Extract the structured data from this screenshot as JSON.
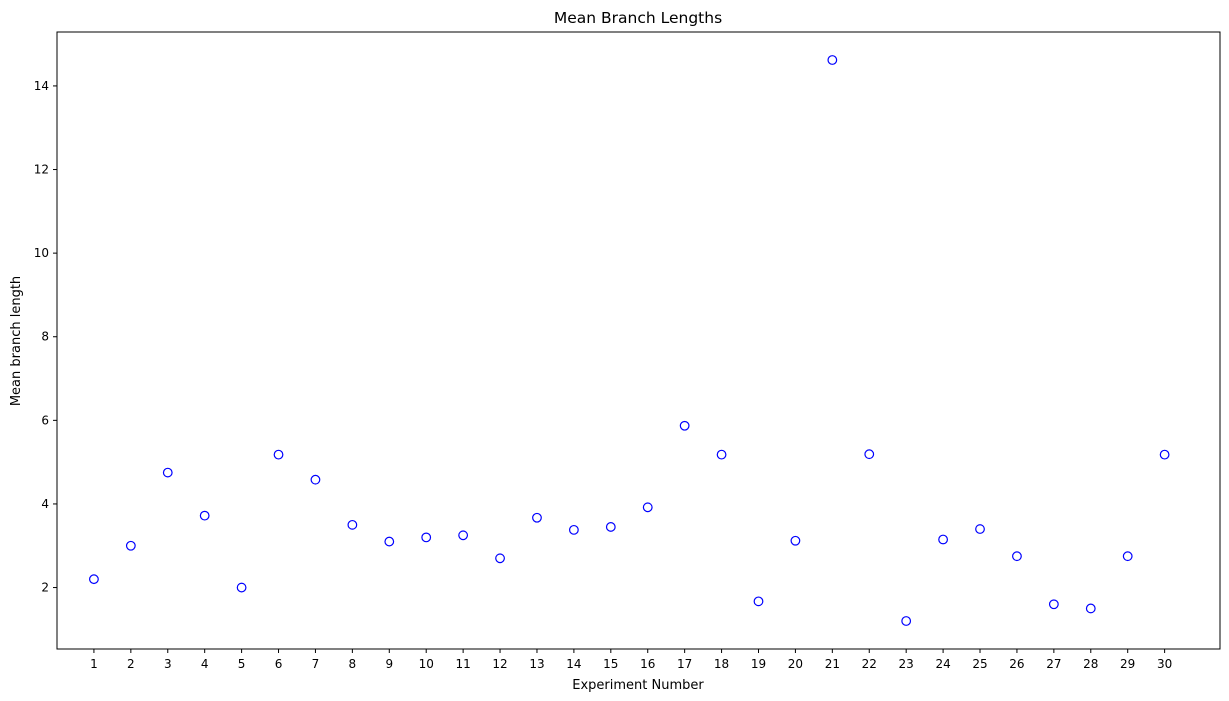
{
  "chart_data": {
    "type": "scatter",
    "title": "Mean Branch Lengths",
    "xlabel": "Experiment Number",
    "ylabel": "Mean branch length",
    "x": [
      1,
      2,
      3,
      4,
      5,
      6,
      7,
      8,
      9,
      10,
      11,
      12,
      13,
      14,
      15,
      16,
      17,
      18,
      19,
      20,
      21,
      22,
      23,
      24,
      25,
      26,
      27,
      28,
      29,
      30
    ],
    "y": [
      2.2,
      3.0,
      4.75,
      3.72,
      2.0,
      5.18,
      4.58,
      3.5,
      3.1,
      3.2,
      3.25,
      2.7,
      3.67,
      3.38,
      3.45,
      3.92,
      5.87,
      5.18,
      1.67,
      3.12,
      14.62,
      5.19,
      1.2,
      3.15,
      3.4,
      2.75,
      1.6,
      1.5,
      2.75,
      5.18
    ],
    "xticks": [
      "1",
      "2",
      "3",
      "4",
      "5",
      "6",
      "7",
      "8",
      "9",
      "10",
      "11",
      "12",
      "13",
      "14",
      "15",
      "16",
      "17",
      "18",
      "19",
      "20",
      "21",
      "22",
      "23",
      "24",
      "25",
      "26",
      "27",
      "28",
      "29",
      "30"
    ],
    "yticks": [
      2,
      4,
      6,
      8,
      10,
      12,
      14
    ],
    "xlim": [
      0.0,
      31.5
    ],
    "ylim": [
      0.53,
      15.29
    ],
    "marker": "hollow-circle",
    "colors": {
      "marker": "#0000ff",
      "axes": "#000000",
      "background": "#ffffff"
    },
    "grid": false,
    "legend": null
  }
}
